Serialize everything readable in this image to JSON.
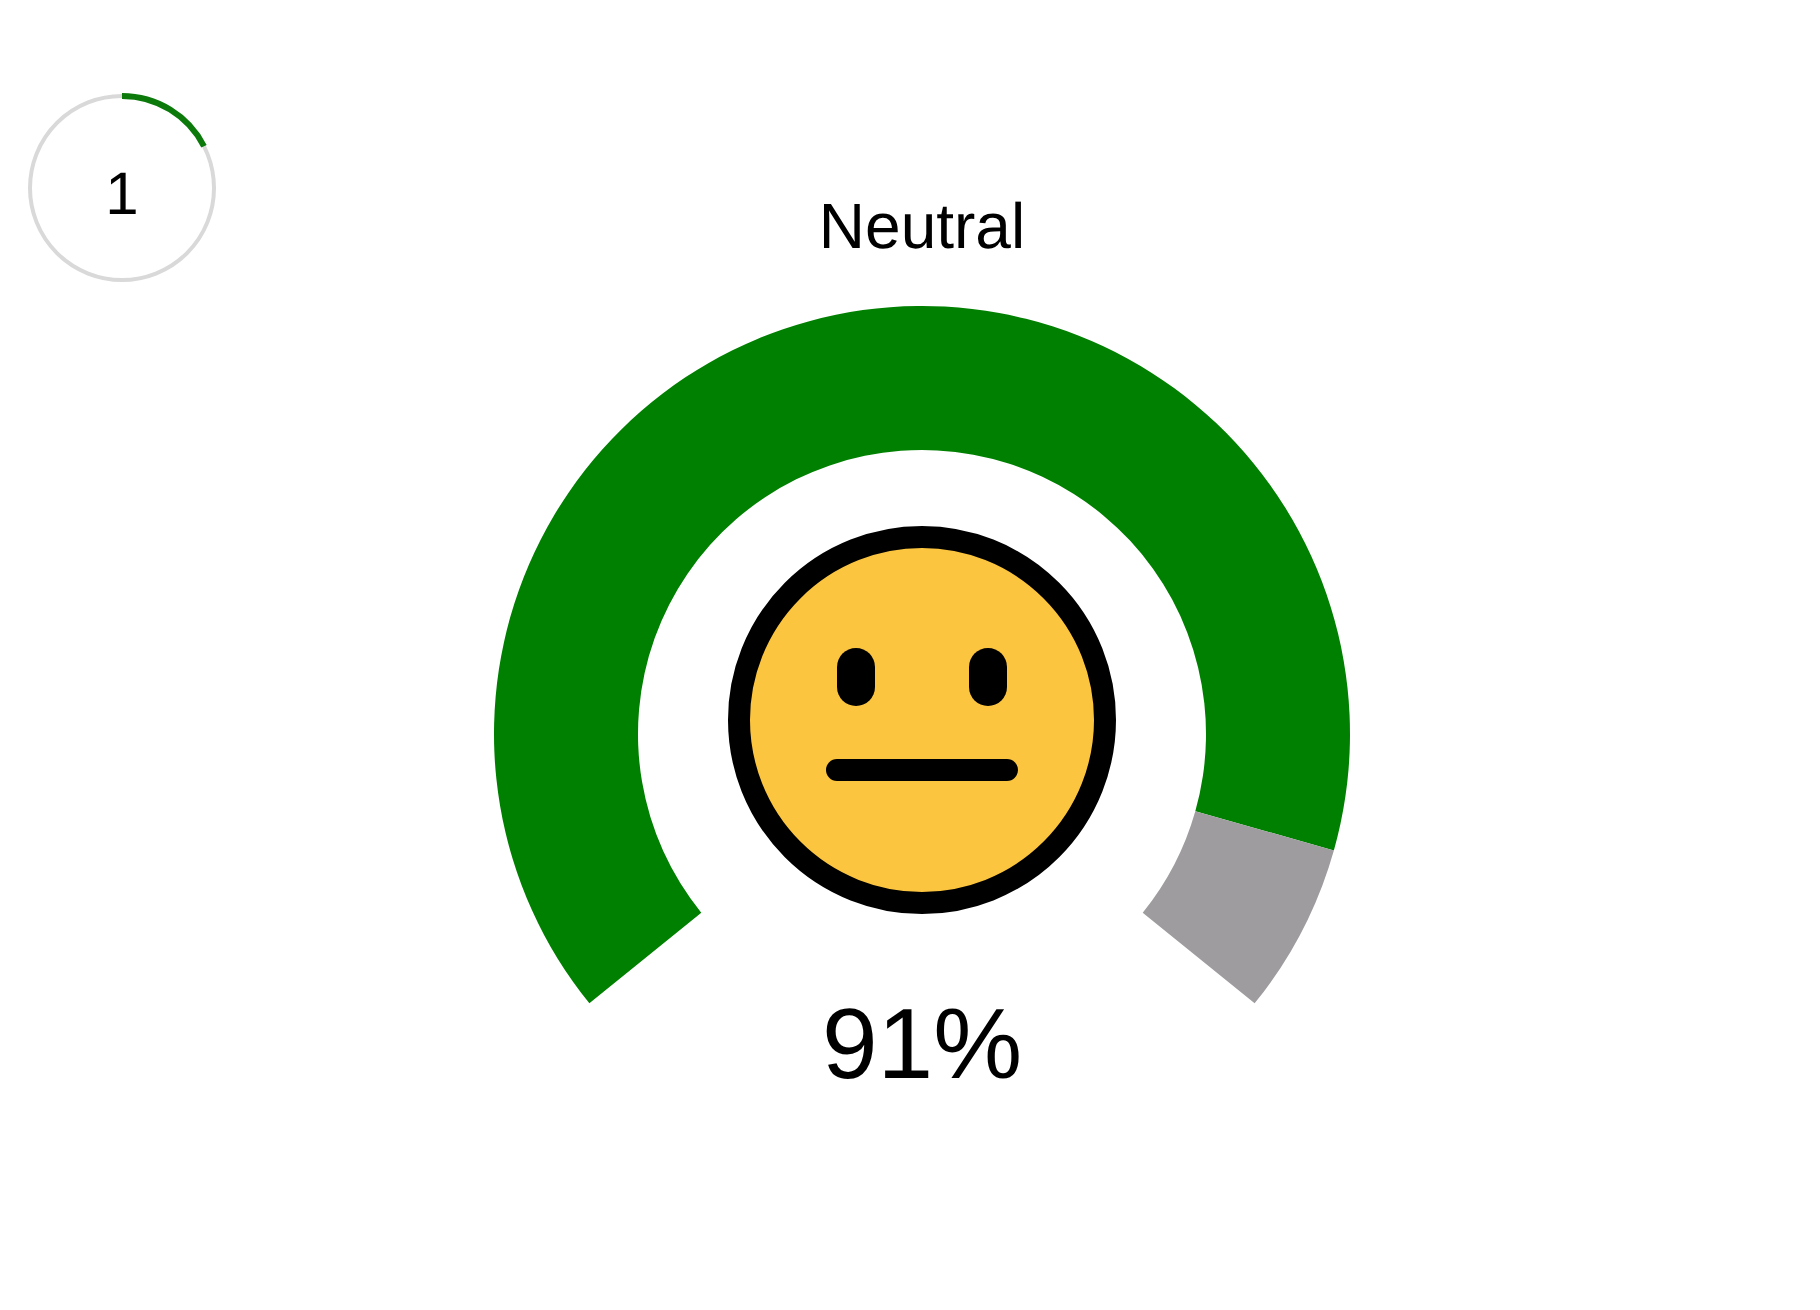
{
  "chart_data": {
    "type": "donut",
    "title": "Neutral",
    "categories": [
      null,
      null
    ],
    "values": [
      91,
      9
    ],
    "colors": [
      "#008000",
      "#9e9c9e"
    ],
    "annotations": [
      "1",
      "91%"
    ]
  }
}
